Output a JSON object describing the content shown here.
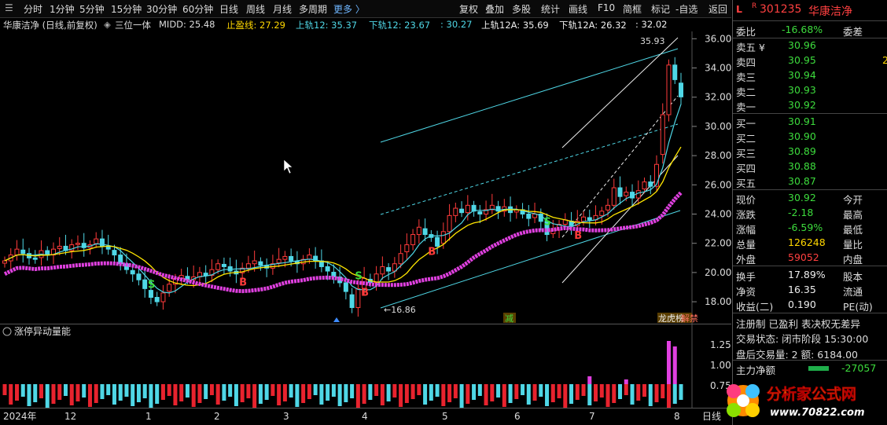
{
  "toolbar": {
    "periods": [
      "分时",
      "1分钟",
      "5分钟",
      "15分钟",
      "30分钟",
      "60分钟",
      "日线",
      "周线",
      "月线",
      "多周期",
      "更多 〉"
    ],
    "tools": [
      "复权",
      "叠加",
      "多股",
      "统计",
      "画线",
      "F10",
      "简框",
      "标记",
      "-自选",
      "返回"
    ]
  },
  "info_line": {
    "title": "华康洁净 (日线,前复权)",
    "indicator": "三位一体",
    "midd": "MIDD: 25.48",
    "stop": "止盈线: 27.29",
    "upper12": "上轨12: 35.37",
    "lower12": "下轨12: 23.67",
    "mid30": ": 30.27",
    "upper12a": "上轨12A: 35.69",
    "lower12a": "下轨12A: 26.32",
    "last": ": 32.02"
  },
  "chart_annotations": {
    "high_label": "35.93",
    "low_label": "16.86",
    "markers": [
      "S",
      "B",
      "S",
      "B",
      "B",
      "S",
      "B"
    ],
    "event_tags": [
      "减",
      "龙虎榜",
      "解禁"
    ]
  },
  "volume_panel": {
    "title": "涨停异动量能",
    "y_ticks": [
      "1.25",
      "1.00",
      "0.75"
    ]
  },
  "x_axis": {
    "labels": [
      "2024年",
      "12",
      "1",
      "2",
      "3",
      "4",
      "5",
      "6",
      "7",
      "8"
    ],
    "period_label": "日线"
  },
  "quote": {
    "header": {
      "flag1": "L",
      "flag2": "R",
      "code": "301235",
      "name": "华康洁净"
    },
    "ratio": {
      "label": "委比",
      "value": "-16.68%",
      "label2": "委差"
    },
    "asks": [
      {
        "label": "卖五 ¥",
        "price": "30.96"
      },
      {
        "label": "卖四",
        "price": "30.95"
      },
      {
        "label": "卖三",
        "price": "30.94"
      },
      {
        "label": "卖二",
        "price": "30.93"
      },
      {
        "label": "卖一",
        "price": "30.92"
      }
    ],
    "bids": [
      {
        "label": "买一",
        "price": "30.91"
      },
      {
        "label": "买二",
        "price": "30.90"
      },
      {
        "label": "买三",
        "price": "30.89"
      },
      {
        "label": "买四",
        "price": "30.88"
      },
      {
        "label": "买五",
        "price": "30.87"
      }
    ],
    "stats": [
      {
        "label": "现价",
        "value": "30.92",
        "label2": "今开"
      },
      {
        "label": "涨跌",
        "value": "-2.18",
        "label2": "最高"
      },
      {
        "label": "涨幅",
        "value": "-6.59%",
        "label2": "最低"
      },
      {
        "label": "总量",
        "value": "126248",
        "label2": "量比"
      },
      {
        "label": "外盘",
        "value": "59052",
        "label2": "内盘"
      }
    ],
    "stats2": [
      {
        "label": "换手",
        "value": "17.89%",
        "label2": "股本"
      },
      {
        "label": "净资",
        "value": "16.35",
        "label2": "流通"
      },
      {
        "label": "收益(二)",
        "value": "0.190",
        "label2": "PE(动)"
      }
    ],
    "tags": "注册制  已盈利  表决权无差异",
    "trade_status": "交易状态: 闭市阶段  15:30:00",
    "after_hours": "盘后交易量: 2  额: 6184.00",
    "main_flow": {
      "label": "主力净额",
      "value": "-27057"
    }
  },
  "watermark": {
    "text": "分析家公式网",
    "url": "www.70822.com"
  },
  "chart_data": {
    "type": "candlestick",
    "title": "华康洁净 (日线,前复权)",
    "y_ticks": [
      18,
      20,
      22,
      24,
      26,
      28,
      30,
      32,
      34,
      36
    ],
    "ylim": [
      16.5,
      36.5
    ],
    "x_labels": [
      "2024年",
      "12",
      "1",
      "2",
      "3",
      "4",
      "5",
      "6",
      "7",
      "8"
    ],
    "series": [
      {
        "name": "MIDD",
        "last": 25.48
      },
      {
        "name": "止盈线",
        "last": 27.29
      },
      {
        "name": "上轨12",
        "last": 35.37
      },
      {
        "name": "下轨12",
        "last": 23.67
      },
      {
        "name": "上轨12A",
        "last": 35.69
      },
      {
        "name": "下轨12A",
        "last": 26.32
      }
    ],
    "high": 35.93,
    "low": 16.86,
    "closes": [
      20.8,
      21.2,
      21.6,
      21.3,
      21.0,
      20.9,
      21.5,
      21.2,
      21.6,
      21.8,
      21.5,
      21.9,
      22.0,
      21.7,
      21.9,
      22.3,
      21.8,
      21.6,
      21.2,
      20.6,
      20.2,
      19.9,
      19.5,
      18.9,
      18.3,
      18.0,
      18.6,
      19.2,
      19.6,
      19.8,
      19.5,
      19.7,
      20.0,
      19.8,
      20.2,
      20.6,
      20.4,
      20.1,
      19.9,
      20.3,
      20.6,
      20.8,
      20.5,
      20.3,
      20.6,
      20.9,
      21.1,
      20.8,
      20.6,
      20.9,
      21.2,
      20.8,
      20.4,
      20.1,
      19.7,
      19.3,
      18.7,
      17.6,
      18.9,
      19.6,
      19.3,
      19.9,
      20.4,
      20.1,
      20.6,
      21.3,
      21.9,
      22.6,
      23.1,
      22.6,
      22.4,
      21.8,
      22.8,
      23.9,
      24.4,
      24.1,
      24.6,
      24.2,
      24.0,
      24.3,
      24.6,
      24.2,
      24.5,
      24.1,
      24.3,
      24.0,
      23.7,
      24.0,
      23.5,
      22.6,
      22.9,
      23.3,
      23.6,
      23.2,
      23.5,
      23.8,
      23.6,
      23.9,
      24.2,
      24.6,
      25.8,
      25.2,
      25.5,
      25.1,
      25.6,
      26.2,
      25.9,
      27.4,
      30.8,
      34.2,
      33.2,
      32.02
    ]
  }
}
